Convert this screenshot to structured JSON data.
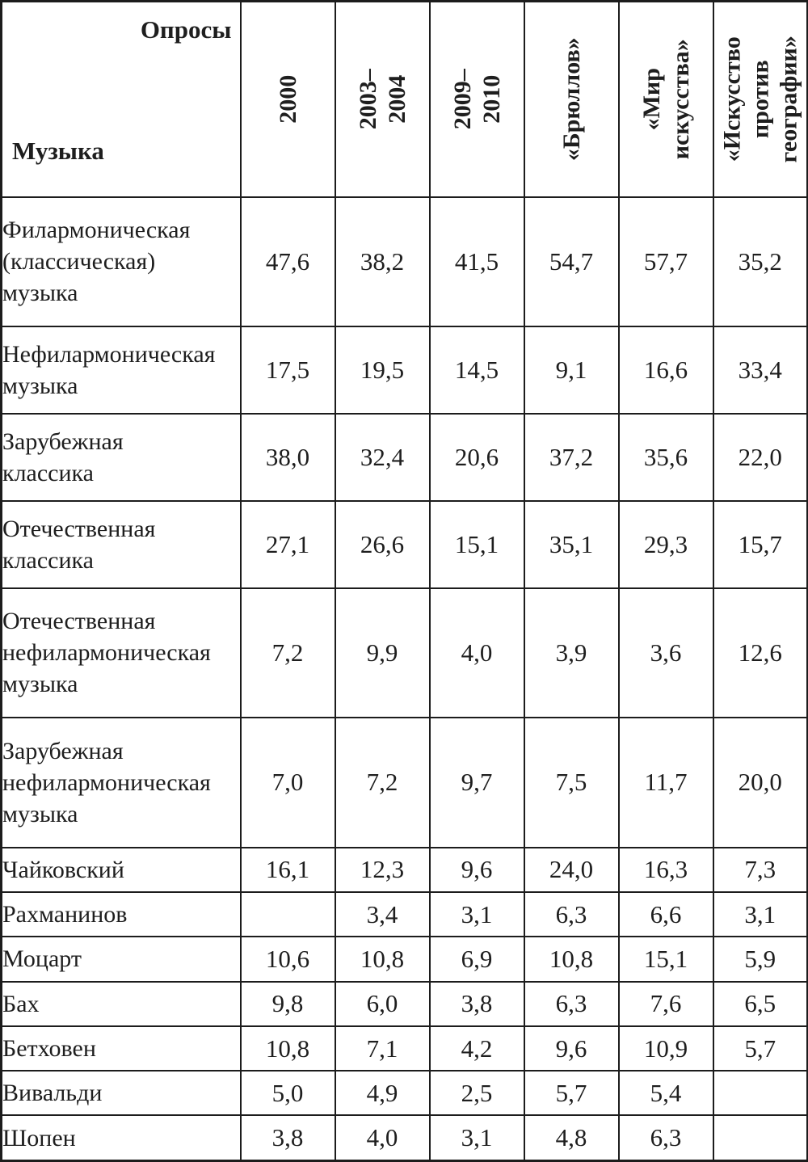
{
  "table": {
    "corner": {
      "top": "Опросы",
      "bottom": "Музыка"
    },
    "columns": [
      "2000",
      "2003–2004",
      "2009–2010",
      "«Брюллов»",
      "«Мир\nискусства»",
      "«Искусство\nпротив\nгеографии»"
    ],
    "rows": [
      {
        "label": "Филармоническая\n(классическая)\nмузыка",
        "values": [
          "47,6",
          "38,2",
          "41,5",
          "54,7",
          "57,7",
          "35,2"
        ]
      },
      {
        "label": "Нефилармоническая\nмузыка",
        "values": [
          "17,5",
          "19,5",
          "14,5",
          "9,1",
          "16,6",
          "33,4"
        ]
      },
      {
        "label": "Зарубежная\nклассика",
        "values": [
          "38,0",
          "32,4",
          "20,6",
          "37,2",
          "35,6",
          "22,0"
        ]
      },
      {
        "label": "Отечественная\nклассика",
        "values": [
          "27,1",
          "26,6",
          "15,1",
          "35,1",
          "29,3",
          "15,7"
        ]
      },
      {
        "label": "Отечественная\nнефилармоническая\nмузыка",
        "values": [
          "7,2",
          "9,9",
          "4,0",
          "3,9",
          "3,6",
          "12,6"
        ]
      },
      {
        "label": "Зарубежная\nнефилармоническая\nмузыка",
        "values": [
          "7,0",
          "7,2",
          "9,7",
          "7,5",
          "11,7",
          "20,0"
        ]
      },
      {
        "label": "Чайковский",
        "values": [
          "16,1",
          "12,3",
          "9,6",
          "24,0",
          "16,3",
          "7,3"
        ]
      },
      {
        "label": "Рахманинов",
        "values": [
          "",
          "3,4",
          "3,1",
          "6,3",
          "6,6",
          "3,1"
        ]
      },
      {
        "label": "Моцарт",
        "values": [
          "10,6",
          "10,8",
          "6,9",
          "10,8",
          "15,1",
          "5,9"
        ]
      },
      {
        "label": "Бах",
        "values": [
          "9,8",
          "6,0",
          "3,8",
          "6,3",
          "7,6",
          "6,5"
        ]
      },
      {
        "label": "Бетховен",
        "values": [
          "10,8",
          "7,1",
          "4,2",
          "9,6",
          "10,9",
          "5,7"
        ]
      },
      {
        "label": "Вивальди",
        "values": [
          "5,0",
          "4,9",
          "2,5",
          "5,7",
          "5,4",
          ""
        ]
      },
      {
        "label": "Шопен",
        "values": [
          "3,8",
          "4,0",
          "3,1",
          "4,8",
          "6,3",
          ""
        ]
      }
    ]
  },
  "colors": {
    "border": "#1c1c1c",
    "text": "#1e1e1e",
    "background": "#ffffff"
  }
}
